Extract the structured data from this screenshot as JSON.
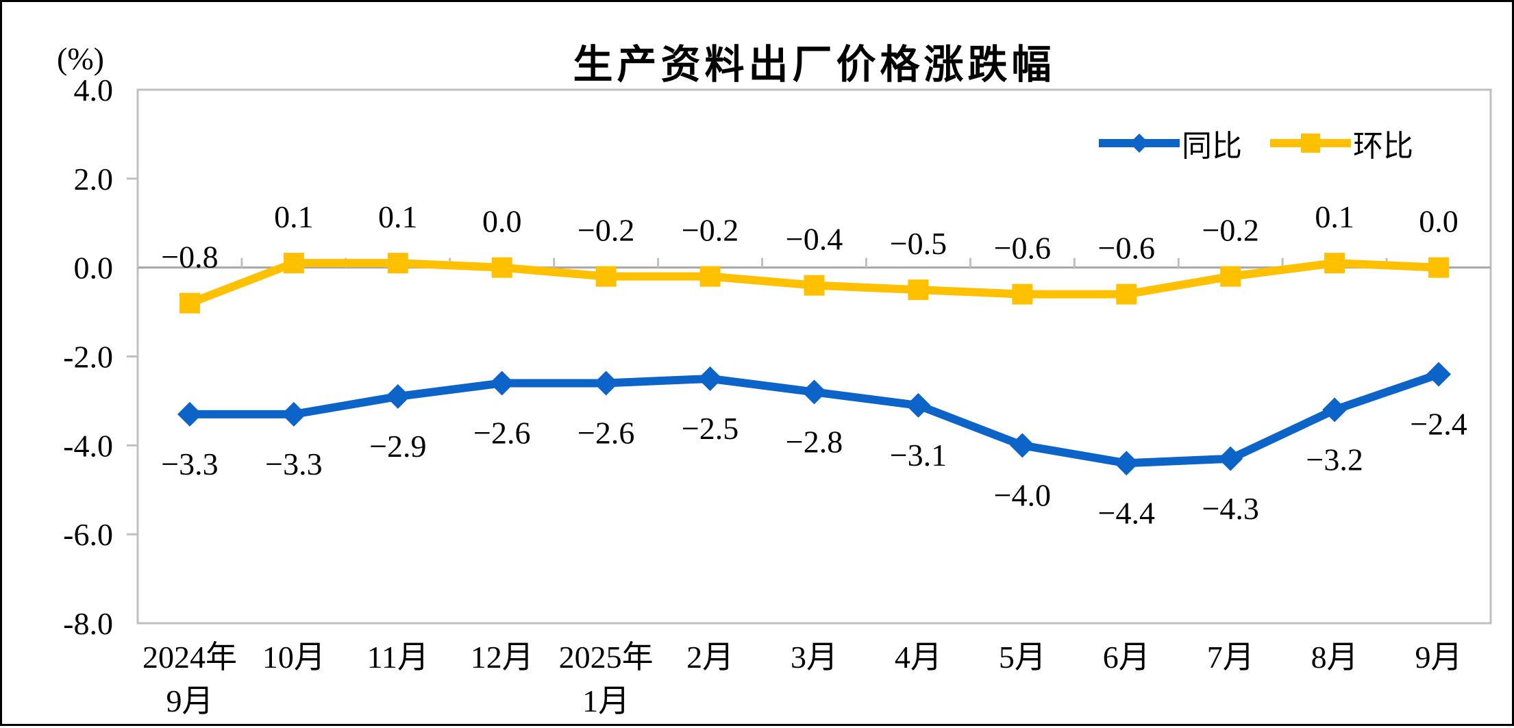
{
  "chart_data": {
    "type": "line",
    "title": "生产资料出厂价格涨跌幅",
    "ylabel": "(%)",
    "xlabel": "",
    "ylim": [
      -8.0,
      4.0
    ],
    "ytick_interval": 2.0,
    "yticks": [
      "4.0",
      "2.0",
      "0.0",
      "-2.0",
      "-4.0",
      "-6.0",
      "-8.0"
    ],
    "categories": [
      "2024年9月",
      "10月",
      "11月",
      "12月",
      "2025年1月",
      "2月",
      "3月",
      "4月",
      "5月",
      "6月",
      "7月",
      "8月",
      "9月"
    ],
    "x_tick_lines": [
      [
        "2024年",
        "9月"
      ],
      [
        "10月"
      ],
      [
        "11月"
      ],
      [
        "12月"
      ],
      [
        "2025年",
        "1月"
      ],
      [
        "2月"
      ],
      [
        "3月"
      ],
      [
        "4月"
      ],
      [
        "5月"
      ],
      [
        "6月"
      ],
      [
        "7月"
      ],
      [
        "8月"
      ],
      [
        "9月"
      ]
    ],
    "series": [
      {
        "name": "同比",
        "color": "#0D64C8",
        "marker": "diamond",
        "label_position": "below",
        "values": [
          -3.3,
          -3.3,
          -2.9,
          -2.6,
          -2.6,
          -2.5,
          -2.8,
          -3.1,
          -4.0,
          -4.4,
          -4.3,
          -3.2,
          -2.4
        ],
        "labels": [
          "-3.3",
          "-3.3",
          "-2.9",
          "-2.6",
          "-2.6",
          "-2.5",
          "-2.8",
          "-3.1",
          "-4.0",
          "-4.4",
          "-4.3",
          "-3.2",
          "-2.4"
        ]
      },
      {
        "name": "环比",
        "color": "#FFC000",
        "marker": "square",
        "label_position": "above",
        "values": [
          -0.8,
          0.1,
          0.1,
          0.0,
          -0.2,
          -0.2,
          -0.4,
          -0.5,
          -0.6,
          -0.6,
          -0.2,
          0.1,
          0.0
        ],
        "labels": [
          "-0.8",
          "0.1",
          "0.1",
          "0.0",
          "-0.2",
          "-0.2",
          "-0.4",
          "-0.5",
          "-0.6",
          "-0.6",
          "-0.2",
          "0.1",
          "0.0"
        ]
      }
    ],
    "legend": {
      "position": "top-right",
      "entries": [
        "同比",
        "环比"
      ]
    },
    "grid": "zero-line-only",
    "colors": {
      "axis_border": "#BFBFBF",
      "tick": "#BFBFBF",
      "zero_line": "#A6A6A6",
      "text": "#000000",
      "background": "#FFFFFF",
      "page_border": "#000000"
    }
  }
}
